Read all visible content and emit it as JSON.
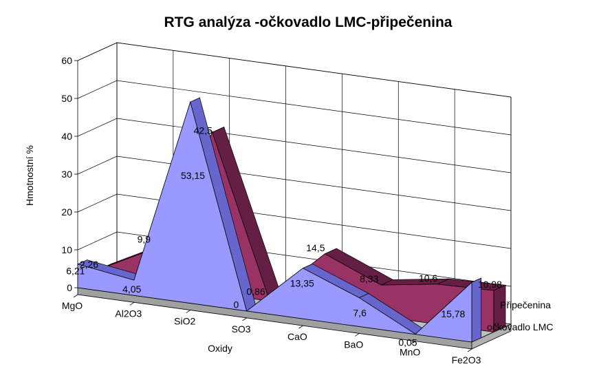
{
  "chart_data": {
    "type": "area",
    "title": "RTG analýza -očkovadlo LMC-připečenina",
    "xlabel": "Oxidy",
    "ylabel": "Hmotnostní %",
    "categories": [
      "MgO",
      "Al2O3",
      "SiO2",
      "SO3",
      "CaO",
      "BaO",
      "MnO",
      "Fe2O3"
    ],
    "ylim": [
      0,
      60
    ],
    "yticks": [
      "0",
      "10",
      "20",
      "30",
      "40",
      "50",
      "60"
    ],
    "grid": true,
    "series": [
      {
        "name": "očkovadlo LMC",
        "values": [
          6.21,
          4.05,
          53.15,
          0,
          13.35,
          7.6,
          0.05,
          15.78
        ],
        "labels": [
          "6,21",
          "4,05",
          "53,15",
          "0",
          "13,35",
          "7,6",
          "0,05",
          "15,78"
        ],
        "color": "#9999ff",
        "side_color": "#6666cc"
      },
      {
        "name": "Připečenina",
        "values": [
          2.26,
          9.9,
          42.5,
          0.86,
          14.5,
          8.33,
          10.6,
          10.98
        ],
        "labels": [
          "2,26",
          "9,9",
          "42,5",
          "0,86",
          "14,5",
          "8,33",
          "10,6",
          "10,98"
        ],
        "color": "#993366",
        "side_color": "#661f44"
      }
    ],
    "legend": "depth-axis"
  }
}
